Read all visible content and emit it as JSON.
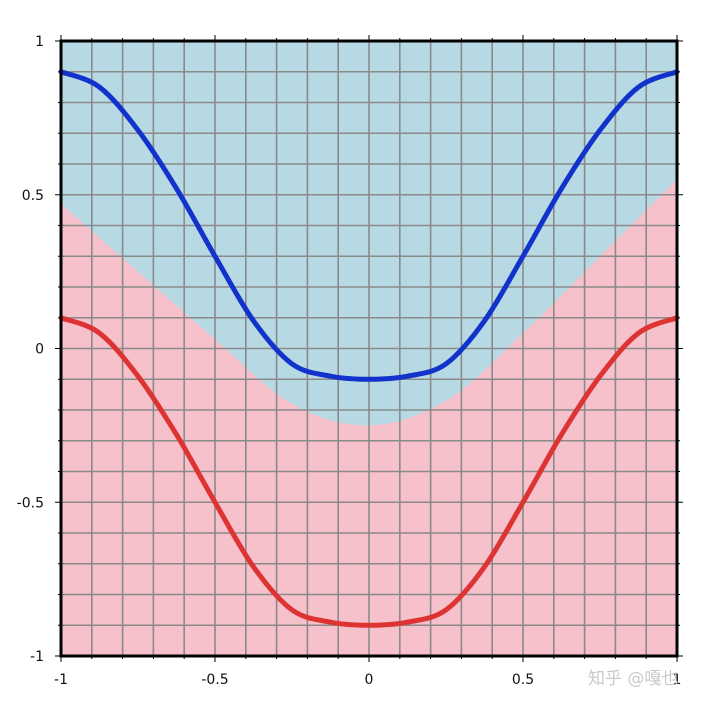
{
  "chart_data": {
    "type": "area",
    "title": "",
    "xlabel": "",
    "ylabel": "",
    "xlim": [
      -1,
      1
    ],
    "ylim": [
      -1,
      1
    ],
    "grid": true,
    "grid_step": 0.1,
    "x_ticks": [
      "-1",
      "-0.5",
      "0",
      "0.5",
      "1"
    ],
    "y_ticks": [
      "1",
      "0.5",
      "0",
      "-0.5",
      "-1"
    ],
    "x_tick_values": [
      -1,
      -0.5,
      0,
      0.5,
      1
    ],
    "y_tick_values": [
      1,
      0.5,
      0,
      -0.5,
      -1
    ],
    "regions": [
      {
        "color": "#b7d9e4",
        "description": "upper region"
      },
      {
        "color": "#f6c1ca",
        "description": "lower region",
        "boundary": {
          "x": [
            -1,
            -0.75,
            -0.5,
            -0.25,
            0,
            0.25,
            0.5,
            0.75,
            1
          ],
          "y": [
            0.47,
            0.25,
            0.03,
            -0.18,
            -0.25,
            -0.17,
            0.05,
            0.3,
            0.55
          ]
        }
      }
    ],
    "series": [
      {
        "color": "#1133cc",
        "x": [
          -1,
          -0.875,
          -0.75,
          -0.625,
          -0.5,
          -0.375,
          -0.25,
          -0.125,
          0,
          0.125,
          0.25,
          0.375,
          0.5,
          0.625,
          0.75,
          0.875,
          1
        ],
        "y": [
          0.9,
          0.85,
          0.71,
          0.52,
          0.3,
          0.09,
          -0.05,
          -0.09,
          -0.1,
          -0.09,
          -0.05,
          0.09,
          0.3,
          0.52,
          0.71,
          0.85,
          0.9
        ]
      },
      {
        "color": "#dd3333",
        "x": [
          -1,
          -0.875,
          -0.75,
          -0.625,
          -0.5,
          -0.375,
          -0.25,
          -0.125,
          0,
          0.125,
          0.25,
          0.375,
          0.5,
          0.625,
          0.75,
          0.875,
          1
        ],
        "y": [
          0.1,
          0.05,
          -0.09,
          -0.28,
          -0.5,
          -0.71,
          -0.85,
          -0.89,
          -0.9,
          -0.89,
          -0.85,
          -0.71,
          -0.5,
          -0.28,
          -0.09,
          0.05,
          0.1
        ]
      }
    ]
  },
  "watermark": "知乎 @嘎也"
}
